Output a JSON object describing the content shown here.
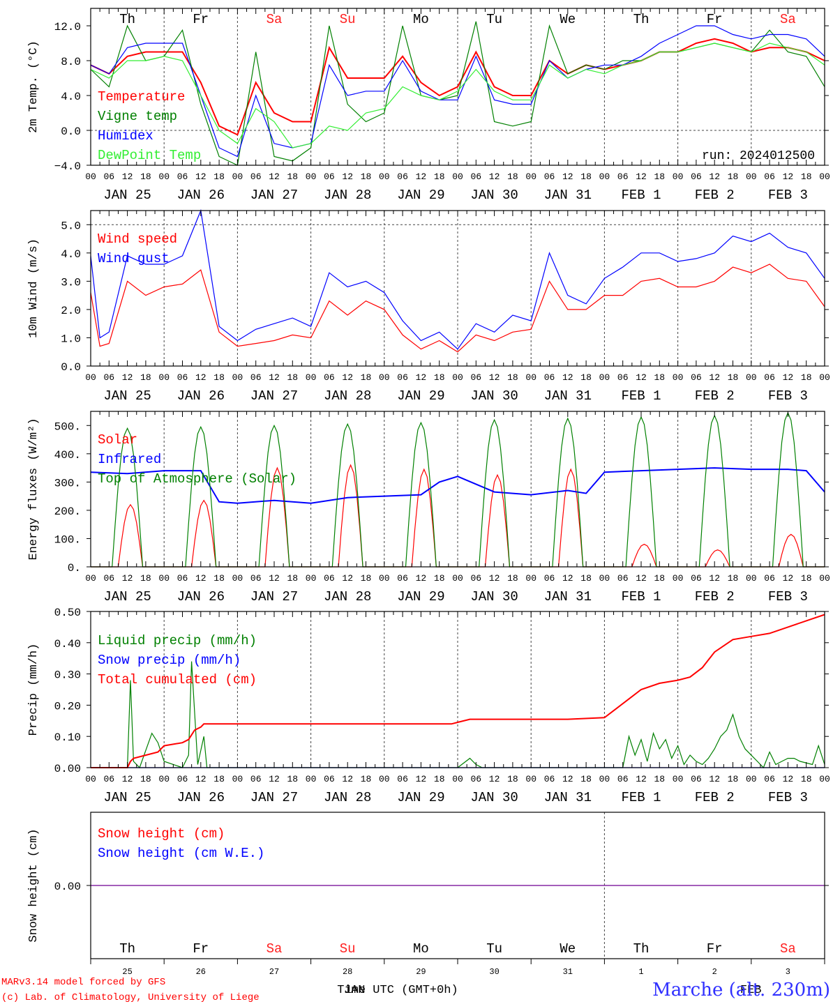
{
  "colors": {
    "red": "#ff0000",
    "green": "#008000",
    "blue": "#0000ff",
    "lightgreen": "#33ee33",
    "purple": "#8020a0",
    "weekend": "#ff2020",
    "location": "#3030ff"
  },
  "x_axis": {
    "hour_labels": [
      "00",
      "06",
      "12",
      "18"
    ],
    "final_hour_label": "00",
    "date_labels": [
      "JAN 25",
      "JAN 26",
      "JAN 27",
      "JAN 28",
      "JAN 29",
      "JAN 30",
      "JAN 31",
      "FEB  1",
      "FEB  2",
      "FEB  3"
    ],
    "day_abbrevs": [
      "Th",
      "Fr",
      "Sa",
      "Su",
      "Mo",
      "Tu",
      "We",
      "Th",
      "Fr",
      "Sa"
    ],
    "weekend_days": [
      "Sa",
      "Su"
    ],
    "day_numbers": [
      "25",
      "26",
      "27",
      "28",
      "29",
      "30",
      "31",
      "1",
      "2",
      "3"
    ],
    "month_labels": [
      "JAN",
      "FEB"
    ],
    "time_label": "Time UTC (GMT+0h)"
  },
  "footer": {
    "model_line": "MARv3.14 model forced by GFS",
    "copyright_line": "(c) Lab. of Climatology, University of Liege",
    "location": "Marche (alt. 230m)"
  },
  "chart_data": [
    {
      "type": "line",
      "id": "temp",
      "ylabel": "2m Temp. (°C)",
      "ylim": [
        -4,
        14
      ],
      "yticks": [
        -4,
        0,
        4,
        8,
        12
      ],
      "ytick_labels": [
        "−4.0",
        "0.0",
        "4.0",
        "8.0",
        "12.0"
      ],
      "dashed_y": [
        0
      ],
      "annotation": "run: 2024012500",
      "x_unit": "hours since JAN 25 00 UTC",
      "series": [
        {
          "name": "Temperature",
          "color": "#ff0000",
          "x": [
            0,
            6,
            12,
            18,
            24,
            30,
            36,
            42,
            48,
            54,
            60,
            66,
            72,
            78,
            84,
            90,
            96,
            102,
            108,
            114,
            120,
            126,
            132,
            138,
            144,
            150,
            156,
            162,
            168,
            174,
            180,
            186,
            192,
            198,
            204,
            210,
            216,
            222,
            228,
            234,
            240
          ],
          "values": [
            7.5,
            6.5,
            8.5,
            9,
            9,
            9,
            5.5,
            0.5,
            -0.5,
            5.5,
            2,
            1,
            1,
            9.5,
            6,
            6,
            6,
            8.5,
            5.5,
            4,
            5,
            9,
            5,
            4,
            4,
            8,
            6.5,
            7.5,
            7,
            7.5,
            8,
            9,
            9,
            10,
            10.5,
            10,
            9,
            9.5,
            9.5,
            9,
            8
          ]
        },
        {
          "name": "Vigne temp",
          "color": "#008000",
          "x": [
            0,
            6,
            12,
            18,
            24,
            30,
            36,
            42,
            48,
            54,
            60,
            66,
            72,
            78,
            84,
            90,
            96,
            102,
            108,
            114,
            120,
            126,
            132,
            138,
            144,
            150,
            156,
            162,
            168,
            174,
            180,
            186,
            192,
            198,
            204,
            210,
            216,
            222,
            228,
            234,
            240
          ],
          "values": [
            7,
            5,
            12,
            8,
            8.5,
            11.5,
            3,
            -3,
            -4,
            9,
            -3,
            -3.5,
            -2,
            12,
            3,
            1,
            2,
            12,
            4,
            3.5,
            4,
            12.5,
            1,
            0.5,
            1,
            12,
            6.5,
            7.5,
            7,
            8,
            8,
            9,
            9,
            9.5,
            10,
            9.5,
            9,
            11.5,
            9,
            8.5,
            5
          ]
        },
        {
          "name": "Humidex",
          "color": "#0000ff",
          "x": [
            0,
            6,
            12,
            18,
            24,
            30,
            36,
            42,
            48,
            54,
            60,
            66,
            72,
            78,
            84,
            90,
            96,
            102,
            108,
            114,
            120,
            126,
            132,
            138,
            144,
            150,
            156,
            162,
            168,
            174,
            180,
            186,
            192,
            198,
            204,
            210,
            216,
            222,
            228,
            234,
            240
          ],
          "values": [
            7.5,
            6.5,
            9.5,
            10,
            10,
            10,
            4,
            -2,
            -3,
            4,
            -1.5,
            -2,
            -1.5,
            7.5,
            4,
            4.5,
            4.5,
            8,
            4.5,
            3.5,
            3.5,
            8.5,
            3.5,
            3,
            3,
            8,
            6,
            7,
            7.5,
            7.5,
            8.5,
            10,
            11,
            12,
            12,
            11,
            10.5,
            11,
            11,
            10.5,
            8.5
          ]
        },
        {
          "name": "DewPoint Temp",
          "color": "#33ee33",
          "x": [
            0,
            6,
            12,
            18,
            24,
            30,
            36,
            42,
            48,
            54,
            60,
            66,
            72,
            78,
            84,
            90,
            96,
            102,
            108,
            114,
            120,
            126,
            132,
            138,
            144,
            150,
            156,
            162,
            168,
            174,
            180,
            186,
            192,
            198,
            204,
            210,
            216,
            222,
            228,
            234,
            240
          ],
          "values": [
            7,
            6,
            8,
            8,
            8.5,
            8,
            4,
            0,
            -1.5,
            2.5,
            1,
            -2,
            -1.5,
            0.5,
            0,
            2,
            2.5,
            5,
            4,
            3.5,
            4.5,
            7,
            4.5,
            3.5,
            3.5,
            7.5,
            6,
            7,
            6.5,
            7.5,
            8,
            9,
            9,
            9.5,
            10,
            9.5,
            9,
            10,
            9.5,
            9,
            7.5
          ]
        }
      ]
    },
    {
      "type": "line",
      "id": "wind",
      "ylabel": "10m Wind (m/s)",
      "ylim": [
        0,
        5.5
      ],
      "yticks": [
        0,
        1,
        2,
        3,
        4,
        5
      ],
      "ytick_labels": [
        "0.0",
        "1.0",
        "2.0",
        "3.0",
        "4.0",
        "5.0"
      ],
      "dashed_y": [
        5
      ],
      "series": [
        {
          "name": "Wind speed",
          "color": "#ff0000",
          "x": [
            0,
            3,
            6,
            12,
            18,
            24,
            30,
            36,
            42,
            48,
            54,
            60,
            66,
            72,
            78,
            84,
            90,
            96,
            102,
            108,
            114,
            120,
            126,
            132,
            138,
            144,
            150,
            156,
            162,
            168,
            174,
            180,
            186,
            192,
            198,
            204,
            210,
            216,
            222,
            228,
            234,
            240
          ],
          "values": [
            2.6,
            0.7,
            0.8,
            3,
            2.5,
            2.8,
            2.9,
            3.4,
            1.2,
            0.7,
            0.8,
            0.9,
            1.1,
            1,
            2.3,
            1.8,
            2.3,
            2,
            1.1,
            0.6,
            0.9,
            0.5,
            1.1,
            0.9,
            1.2,
            1.3,
            3,
            2,
            2,
            2.5,
            2.5,
            3,
            3.1,
            2.8,
            2.8,
            3,
            3.5,
            3.3,
            3.6,
            3.1,
            3,
            2.1
          ]
        },
        {
          "name": "Wind gust",
          "color": "#0000ff",
          "x": [
            0,
            3,
            6,
            12,
            18,
            24,
            30,
            36,
            42,
            48,
            54,
            60,
            66,
            72,
            78,
            84,
            90,
            96,
            102,
            108,
            114,
            120,
            126,
            132,
            138,
            144,
            150,
            156,
            162,
            168,
            174,
            180,
            186,
            192,
            198,
            204,
            210,
            216,
            222,
            228,
            234,
            240
          ],
          "values": [
            3.9,
            1,
            1.2,
            3.9,
            3.6,
            3.6,
            3.9,
            5.5,
            1.4,
            0.9,
            1.3,
            1.5,
            1.7,
            1.4,
            3.3,
            2.8,
            3,
            2.6,
            1.6,
            0.9,
            1.2,
            0.6,
            1.5,
            1.2,
            1.8,
            1.6,
            4,
            2.5,
            2.2,
            3.1,
            3.5,
            4,
            4,
            3.7,
            3.8,
            4,
            4.6,
            4.4,
            4.7,
            4.2,
            4,
            3.1
          ]
        }
      ]
    },
    {
      "type": "line",
      "id": "energy",
      "ylabel": "Energy fluxes (W/m²)",
      "ylim": [
        0,
        550
      ],
      "yticks": [
        0,
        100,
        200,
        300,
        400,
        500
      ],
      "ytick_labels": [
        "0.",
        "100.",
        "200.",
        "300.",
        "400.",
        "500."
      ],
      "series": [
        {
          "name": "Solar",
          "color": "#ff0000",
          "peaks": [
            {
              "t": 13,
              "v": 220
            },
            {
              "t": 37,
              "v": 235
            },
            {
              "t": 61,
              "v": 350
            },
            {
              "t": 85,
              "v": 360
            },
            {
              "t": 109,
              "v": 345
            },
            {
              "t": 133,
              "v": 325
            },
            {
              "t": 157,
              "v": 345
            },
            {
              "t": 181,
              "v": 80
            },
            {
              "t": 205,
              "v": 60
            },
            {
              "t": 229,
              "v": 115
            }
          ]
        },
        {
          "name": "Infrared",
          "color": "#0000ff",
          "x": [
            0,
            12,
            24,
            36,
            42,
            48,
            60,
            72,
            84,
            96,
            108,
            114,
            120,
            132,
            144,
            156,
            162,
            168,
            180,
            192,
            204,
            216,
            228,
            234,
            240
          ],
          "values": [
            335,
            330,
            340,
            340,
            230,
            225,
            235,
            225,
            245,
            250,
            255,
            300,
            320,
            265,
            255,
            270,
            260,
            335,
            340,
            345,
            350,
            345,
            345,
            340,
            265
          ]
        },
        {
          "name": "Top of Atmosphere (Solar)",
          "color": "#008000",
          "peaks": [
            {
              "t": 12,
              "v": 490
            },
            {
              "t": 36,
              "v": 495
            },
            {
              "t": 60,
              "v": 500
            },
            {
              "t": 84,
              "v": 505
            },
            {
              "t": 108,
              "v": 510
            },
            {
              "t": 132,
              "v": 520
            },
            {
              "t": 156,
              "v": 525
            },
            {
              "t": 180,
              "v": 530
            },
            {
              "t": 204,
              "v": 535
            },
            {
              "t": 228,
              "v": 545
            }
          ]
        }
      ]
    },
    {
      "type": "line",
      "id": "precip",
      "ylabel": "Precip (mm/h)",
      "ylim": [
        0,
        0.5
      ],
      "yticks": [
        0,
        0.1,
        0.2,
        0.3,
        0.4,
        0.5
      ],
      "ytick_labels": [
        "0.00",
        "0.10",
        "0.20",
        "0.30",
        "0.40",
        "0.50"
      ],
      "series": [
        {
          "name": "Liquid precip (mm/h)",
          "color": "#008000",
          "x": [
            0,
            12,
            13,
            14,
            16,
            20,
            22,
            24,
            30,
            32,
            33,
            35,
            37,
            38,
            40,
            120,
            124,
            126,
            128,
            174,
            176,
            178,
            180,
            182,
            184,
            186,
            188,
            190,
            192,
            194,
            196,
            198,
            200,
            202,
            204,
            206,
            208,
            210,
            212,
            214,
            216,
            218,
            220,
            222,
            224,
            226,
            228,
            230,
            232,
            236,
            238,
            240
          ],
          "values": [
            0,
            0,
            0.28,
            0.02,
            0,
            0.11,
            0.08,
            0.02,
            0,
            0.04,
            0.34,
            0.01,
            0.1,
            0,
            0,
            0,
            0.03,
            0.01,
            0,
            0,
            0.1,
            0.04,
            0.09,
            0.02,
            0.11,
            0.06,
            0.09,
            0.03,
            0.07,
            0.01,
            0.04,
            0.02,
            0.01,
            0.03,
            0.06,
            0.1,
            0.12,
            0.17,
            0.1,
            0.06,
            0.04,
            0.02,
            0,
            0.05,
            0.01,
            0.02,
            0.03,
            0.03,
            0.02,
            0.01,
            0.07,
            0.01
          ]
        },
        {
          "name": "Snow precip (mm/h)",
          "color": "#0000ff",
          "x": [
            0,
            240
          ],
          "values": [
            0,
            0
          ]
        },
        {
          "name": "Total cumulated (cm)",
          "color": "#ff0000",
          "x": [
            0,
            12,
            13,
            14,
            18,
            22,
            24,
            30,
            32,
            34,
            36,
            37,
            38,
            40,
            48,
            60,
            72,
            84,
            96,
            108,
            118,
            120,
            124,
            126,
            132,
            144,
            156,
            168,
            172,
            176,
            180,
            186,
            192,
            196,
            200,
            204,
            210,
            216,
            222,
            228,
            234,
            240
          ],
          "values": [
            0,
            0,
            0.02,
            0.03,
            0.04,
            0.05,
            0.07,
            0.08,
            0.09,
            0.12,
            0.13,
            0.14,
            0.14,
            0.14,
            0.14,
            0.14,
            0.14,
            0.14,
            0.14,
            0.14,
            0.14,
            0.145,
            0.155,
            0.155,
            0.155,
            0.155,
            0.155,
            0.16,
            0.19,
            0.22,
            0.25,
            0.27,
            0.28,
            0.29,
            0.32,
            0.37,
            0.41,
            0.42,
            0.43,
            0.45,
            0.47,
            0.49
          ]
        }
      ]
    },
    {
      "type": "line",
      "id": "snow",
      "ylabel": "Snow height (cm)",
      "ylim": [
        -1,
        1
      ],
      "yticks": [
        0
      ],
      "ytick_labels": [
        "0.00"
      ],
      "series": [
        {
          "name": "Snow height (cm)",
          "color": "#ff0000",
          "x": [
            0,
            240
          ],
          "values": [
            0,
            0
          ]
        },
        {
          "name": "Snow height (cm W.E.)",
          "color": "#0000ff",
          "x": [
            0,
            240
          ],
          "values": [
            0,
            0
          ]
        }
      ]
    }
  ]
}
